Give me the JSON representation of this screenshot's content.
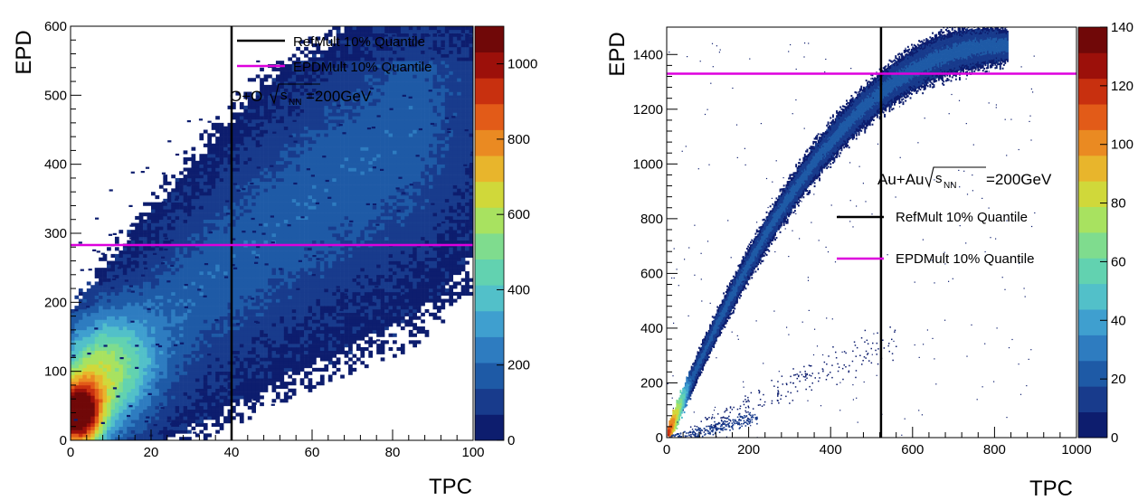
{
  "chart_data": [
    {
      "type": "heatmap",
      "title": "",
      "xlabel": "TPC",
      "ylabel": "EPD",
      "xlim": [
        0,
        100
      ],
      "ylim": [
        0,
        600
      ],
      "x_ticks": [
        "0",
        "20",
        "40",
        "60",
        "80",
        "100"
      ],
      "y_ticks": [
        "0",
        "100",
        "200",
        "300",
        "400",
        "500",
        "600"
      ],
      "colorbar": {
        "min": 0,
        "max": 1100,
        "ticks": [
          "0",
          "200",
          "400",
          "600",
          "800",
          "1000"
        ]
      },
      "annotation": {
        "system": "O+O",
        "energy_value": "=200GeV"
      },
      "sqrt_label": "s",
      "sqrt_sub": "NN",
      "legend": [
        {
          "label": "RefMult 10% Quantile",
          "color": "#000000"
        },
        {
          "label": "EPDMult 10% Quantile",
          "color": "#dd00dd"
        }
      ],
      "lines": {
        "refmult_x": 40,
        "epdmult_y": 283
      },
      "density_model": {
        "peak": [
          3,
          30
        ],
        "axis": [
          [
            0,
            0
          ],
          [
            100,
            400
          ]
        ],
        "halfwidth": 0.22
      }
    },
    {
      "type": "heatmap",
      "title": "",
      "xlabel": "TPC",
      "ylabel": "EPD",
      "xlim": [
        0,
        1000
      ],
      "ylim": [
        0,
        1500
      ],
      "x_ticks": [
        "0",
        "200",
        "400",
        "600",
        "800",
        "1000"
      ],
      "y_ticks": [
        "0",
        "200",
        "400",
        "600",
        "800",
        "1000",
        "1200",
        "1400"
      ],
      "colorbar": {
        "min": 0,
        "max": 140,
        "ticks": [
          "0",
          "20",
          "40",
          "60",
          "80",
          "100",
          "120",
          "140"
        ]
      },
      "annotation": {
        "system": "Au+Au",
        "energy_value": "=200GeV"
      },
      "sqrt_label": "s",
      "sqrt_sub": "NN",
      "legend": [
        {
          "label": "RefMult 10% Quantile",
          "color": "#000000"
        },
        {
          "label": "EPDMult 10% Quantile",
          "color": "#dd00dd"
        }
      ],
      "lines": {
        "refmult_x": 523,
        "epdmult_y": 1330
      },
      "band_model": {
        "x_end": 820,
        "y_end": 1430
      }
    }
  ],
  "palette": [
    "#0d1d6e",
    "#183b8c",
    "#1e5aa6",
    "#2e7cc0",
    "#3f9fcf",
    "#52c0c9",
    "#62d2b0",
    "#7fdc8e",
    "#a8e260",
    "#d0d83a",
    "#e8b52c",
    "#ea8a22",
    "#e25b18",
    "#c8300f",
    "#9c100a",
    "#700808"
  ]
}
